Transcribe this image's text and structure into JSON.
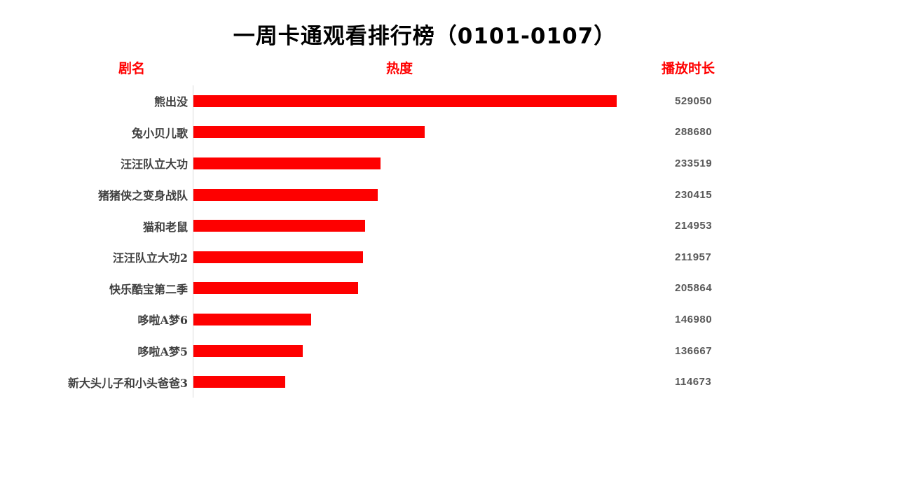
{
  "title": "一周卡通观看排行榜（0101-0107）",
  "columns": {
    "name": "剧名",
    "heat": "热度",
    "duration": "播放时长"
  },
  "colors": {
    "bar": "#fe0000",
    "header_text": "#ff0000",
    "label_text": "#3f3f3f",
    "value_text": "#595959",
    "axis_line": "#d9d9d9",
    "background": "#ffffff",
    "title_text": "#000000"
  },
  "chart_data": {
    "type": "bar",
    "orientation": "horizontal",
    "title": "一周卡通观看排行榜（0101-0107）",
    "xlabel": "热度",
    "ylabel": "剧名",
    "value_label": "播放时长",
    "grid": false,
    "legend": false,
    "xlim": [
      0,
      529050
    ],
    "categories": [
      "熊出没",
      "兔小贝儿歌",
      "汪汪队立大功",
      "猪猪侠之变身战队",
      "猫和老鼠",
      "汪汪队立大功2",
      "快乐酷宝第二季",
      "哆啦A梦6",
      "哆啦A梦5",
      "新大头儿子和小头爸爸3"
    ],
    "values": [
      529050,
      288680,
      233519,
      230415,
      214953,
      211957,
      205864,
      146980,
      136667,
      114673
    ],
    "bar_color": "#fe0000"
  }
}
